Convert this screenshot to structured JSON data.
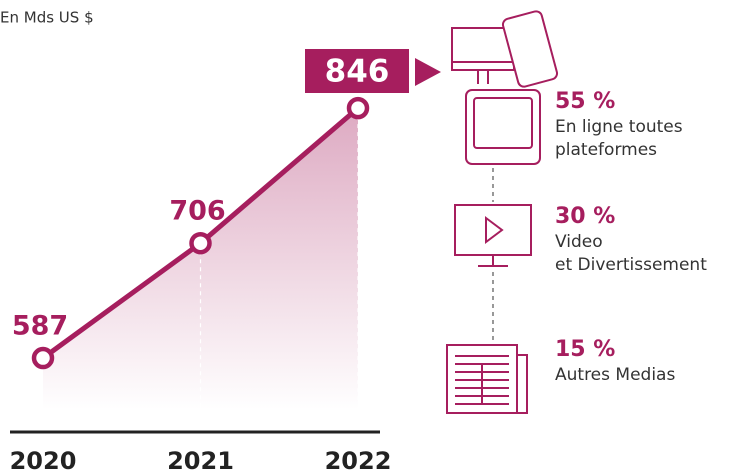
{
  "chart_data": {
    "type": "line",
    "unit": "En Mds US $",
    "categories": [
      "2020",
      "2021",
      "2022"
    ],
    "values": [
      587,
      706,
      846
    ],
    "color": "#a61e5e",
    "highlight": 2,
    "breakdown": {
      "values": [
        55,
        30,
        15
      ],
      "value_labels": [
        "55 %",
        "30 %",
        "15 %"
      ],
      "labels": [
        [
          "En ligne toutes",
          "plateformes"
        ],
        [
          "Video",
          "et Divertissement"
        ],
        [
          "Autres Medias"
        ]
      ]
    }
  }
}
